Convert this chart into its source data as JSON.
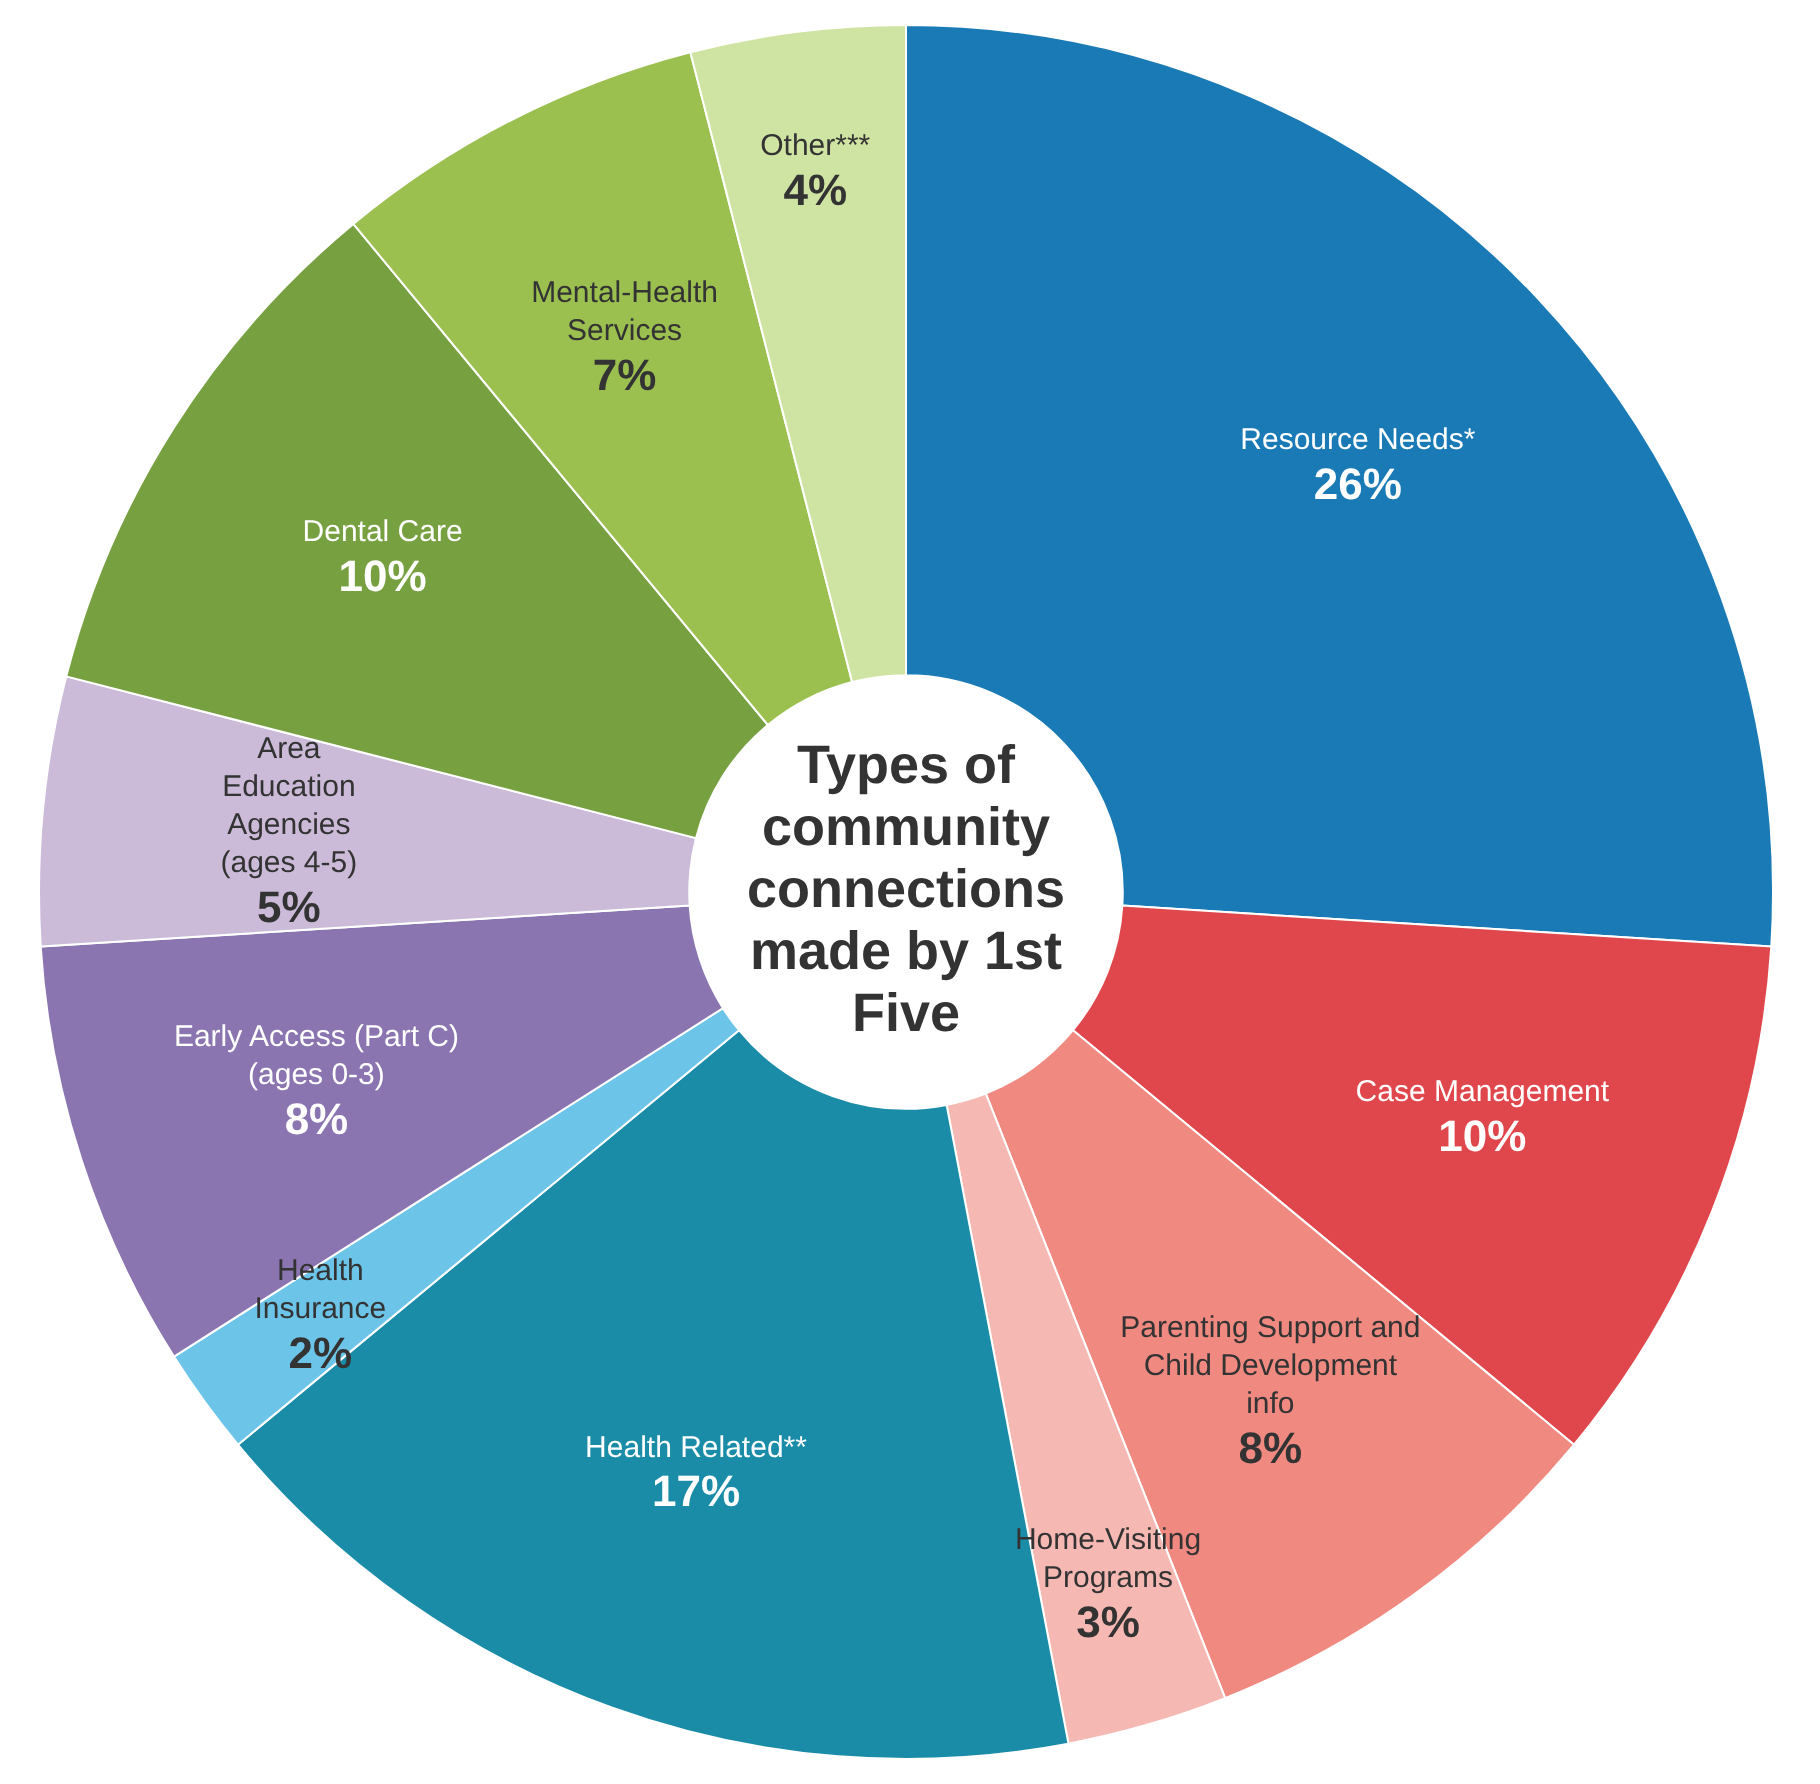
{
  "chart_data": {
    "type": "donut",
    "title": "Types of community connections made by 1st Five",
    "categories": [
      "Resource Needs*",
      "Case Management",
      "Parenting Support and Child Development info",
      "Home-Visiting Programs",
      "Health Related**",
      "Health Insurance",
      "Early Access (Part C) (ages 0-3)",
      "Area Education Agencies (ages 4-5)",
      "Dental Care",
      "Mental-Health Services",
      "Other***"
    ],
    "values": [
      26,
      10,
      8,
      3,
      17,
      2,
      8,
      5,
      10,
      7,
      4
    ],
    "value_labels": [
      "26%",
      "10%",
      "8%",
      "3%",
      "17%",
      "2%",
      "8%",
      "5%",
      "10%",
      "7%",
      "4%"
    ],
    "colors": [
      "#1a7ab5",
      "#e0474c",
      "#f08a80",
      "#f5b8b2",
      "#1a8ca8",
      "#6cc5e8",
      "#8a75b0",
      "#cbbbd9",
      "#77a040",
      "#9cc050",
      "#cfe4a2"
    ],
    "legend": false
  }
}
